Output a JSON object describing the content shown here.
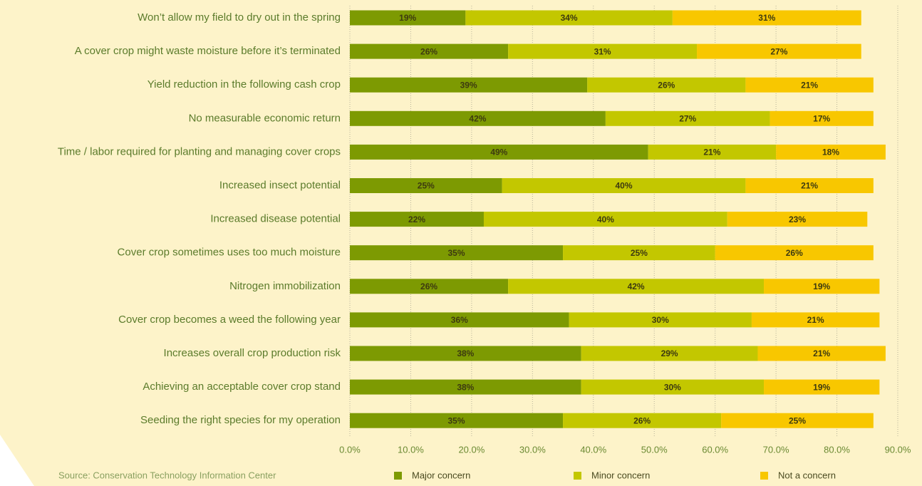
{
  "chart_data": {
    "type": "stacked-bar-horizontal",
    "categories": [
      "Won’t allow my field to dry out in the spring",
      "A cover crop might waste moisture before it’s terminated",
      "Yield reduction in the following cash crop",
      "No measurable economic return",
      "Time / labor required for planting and managing cover crops",
      "Increased insect potential",
      "Increased disease potential",
      "Cover crop sometimes uses too much moisture",
      "Nitrogen immobilization",
      "Cover crop becomes a weed the following year",
      "Increases overall crop production risk",
      "Achieving an acceptable cover crop stand",
      "Seeding the right species for my operation"
    ],
    "series": [
      {
        "name": "Major concern",
        "color": "#7d9a02",
        "values": [
          19,
          26,
          39,
          42,
          49,
          25,
          22,
          35,
          26,
          36,
          38,
          38,
          35
        ],
        "value_labels": [
          "19%",
          "26%",
          "39%",
          "42%",
          "49%",
          "25%",
          "22%",
          "35%",
          "26%",
          "36%",
          "38%",
          "38%",
          "35%"
        ]
      },
      {
        "name": "Minor concern",
        "color": "#c3c700",
        "values": [
          34,
          31,
          26,
          27,
          21,
          40,
          40,
          25,
          42,
          30,
          29,
          30,
          26
        ],
        "value_labels": [
          "34%",
          "31%",
          "26%",
          "27%",
          "21%",
          "40%",
          "40%",
          "25%",
          "42%",
          "30%",
          "29%",
          "30%",
          "26%"
        ]
      },
      {
        "name": "Not a concern",
        "color": "#f8c700",
        "values": [
          31,
          27,
          21,
          17,
          18,
          21,
          23,
          26,
          19,
          21,
          21,
          19,
          25
        ],
        "value_labels": [
          "31%",
          "27%",
          "21%",
          "17%",
          "18%",
          "21%",
          "23%",
          "26%",
          "19%",
          "21%",
          "21%",
          "19%",
          "25%"
        ]
      }
    ],
    "xlim": [
      0,
      90
    ],
    "xticks": [
      {
        "value": 0,
        "label": "0.0%"
      },
      {
        "value": 10,
        "label": "10.0%"
      },
      {
        "value": 20,
        "label": "20.0%"
      },
      {
        "value": 30,
        "label": "30.0%"
      },
      {
        "value": 40,
        "label": "40.0%"
      },
      {
        "value": 50,
        "label": "50.0%"
      },
      {
        "value": 60,
        "label": "60.0%"
      },
      {
        "value": 70,
        "label": "70.0%"
      },
      {
        "value": 80,
        "label": "80.0%"
      },
      {
        "value": 90,
        "label": "90.0%"
      }
    ],
    "grid": true,
    "legend": "bottom",
    "source": "Source: Conservation Technology Information Center"
  }
}
